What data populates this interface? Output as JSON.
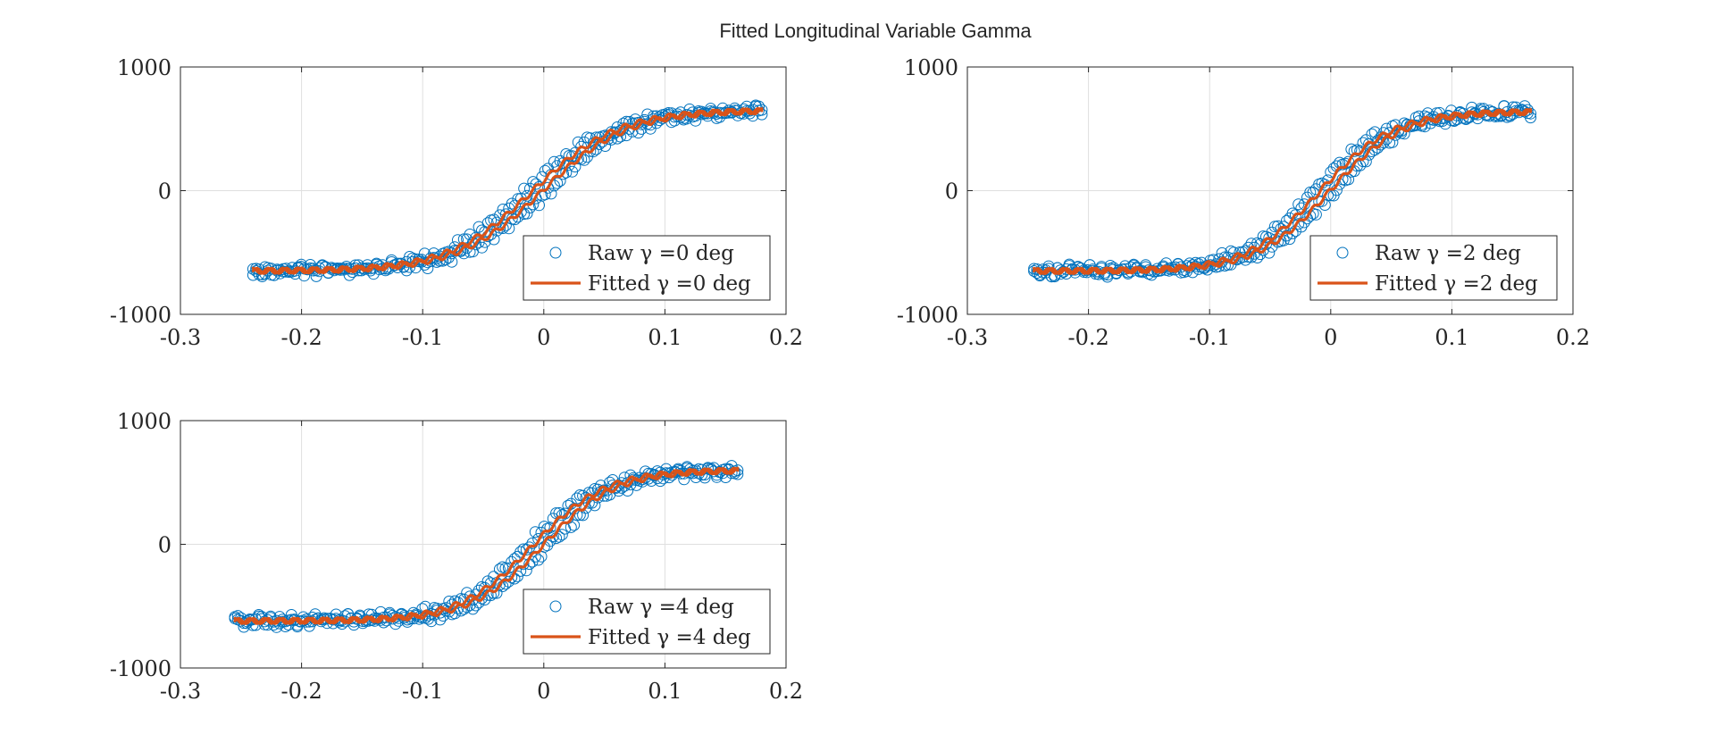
{
  "figure": {
    "title": "Fitted Longitudinal Variable Gamma"
  },
  "colors": {
    "raw": "#0072BD",
    "fitted": "#D95319",
    "grid": "#dfdfdf",
    "axis": "#262626"
  },
  "chart_data": [
    {
      "type": "scatter",
      "gamma_deg": 0,
      "xlim": [
        -0.3,
        0.2
      ],
      "ylim": [
        -1000,
        1000
      ],
      "xticks": [
        "-0.3",
        "-0.2",
        "-0.1",
        "0",
        "0.1",
        "0.2"
      ],
      "yticks": [
        "-1000",
        "0",
        "1000"
      ],
      "grid": true,
      "legend_placement": "bottom-right",
      "x_start": -0.24,
      "x_end": 0.18,
      "plateau_low": -650,
      "plateau_high": 650,
      "center_x": -0.005,
      "width": 0.035,
      "series": [
        {
          "name": "Raw γ =0 deg",
          "kind": "markers"
        },
        {
          "name": "Fitted γ =0 deg",
          "kind": "line"
        }
      ]
    },
    {
      "type": "scatter",
      "gamma_deg": 2,
      "xlim": [
        -0.3,
        0.2
      ],
      "ylim": [
        -1000,
        1000
      ],
      "xticks": [
        "-0.3",
        "-0.2",
        "-0.1",
        "0",
        "0.1",
        "0.2"
      ],
      "yticks": [
        "-1000",
        "0",
        "1000"
      ],
      "grid": true,
      "legend_placement": "bottom-right",
      "x_start": -0.245,
      "x_end": 0.165,
      "plateau_low": -650,
      "plateau_high": 640,
      "center_x": -0.005,
      "width": 0.03,
      "series": [
        {
          "name": "Raw γ =2 deg",
          "kind": "markers"
        },
        {
          "name": "Fitted γ =2 deg",
          "kind": "line"
        }
      ]
    },
    {
      "type": "scatter",
      "gamma_deg": 4,
      "xlim": [
        -0.3,
        0.2
      ],
      "ylim": [
        -1000,
        1000
      ],
      "xticks": [
        "-0.3",
        "-0.2",
        "-0.1",
        "0",
        "0.1",
        "0.2"
      ],
      "yticks": [
        "-1000",
        "0",
        "1000"
      ],
      "grid": true,
      "legend_placement": "bottom-right",
      "x_start": -0.255,
      "x_end": 0.16,
      "plateau_low": -620,
      "plateau_high": 600,
      "center_x": -0.005,
      "width": 0.03,
      "series": [
        {
          "name": "Raw γ =4 deg",
          "kind": "markers"
        },
        {
          "name": "Fitted γ =4 deg",
          "kind": "line"
        }
      ]
    }
  ]
}
